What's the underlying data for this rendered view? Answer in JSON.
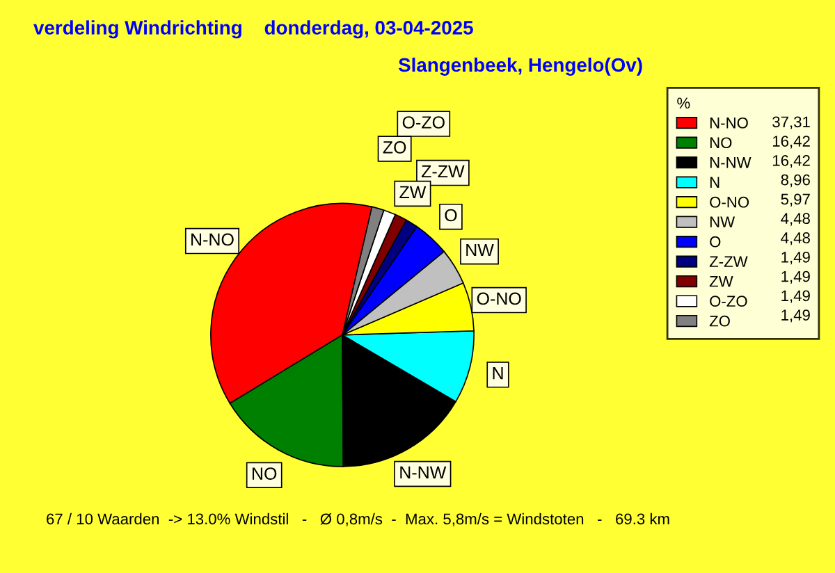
{
  "chart_data": {
    "type": "pie",
    "title": "verdeling Windrichting    donderdag, 03-04-2025",
    "subtitle": "Slangenbeek, Hengelo(Ov)",
    "categories": [
      "N-NO",
      "NO",
      "N-NW",
      "N",
      "O-NO",
      "NW",
      "O",
      "Z-ZW",
      "ZW",
      "O-ZO",
      "ZO"
    ],
    "values": [
      37.31,
      16.42,
      16.42,
      8.96,
      5.97,
      4.48,
      4.48,
      1.49,
      1.49,
      1.49,
      1.49
    ],
    "value_labels": [
      "37,31",
      "16,42",
      "16,42",
      "8,96",
      "5,97",
      "4,48",
      "4,48",
      "1,49",
      "1,49",
      "1,49",
      "1,49"
    ],
    "colors": [
      "#ff0000",
      "#008000",
      "#000000",
      "#00ffff",
      "#ffff00",
      "#c0c0c0",
      "#0000ff",
      "#000080",
      "#800000",
      "#ffffff",
      "#808080"
    ],
    "legend_title": "%",
    "legend": "right",
    "annotations": [
      "67 / 10 Waarden  -> 13.0% Windstil   -   Ø 0,8m/s  -  Max. 5,8m/s = Windstoten   -   69.3 km"
    ]
  }
}
